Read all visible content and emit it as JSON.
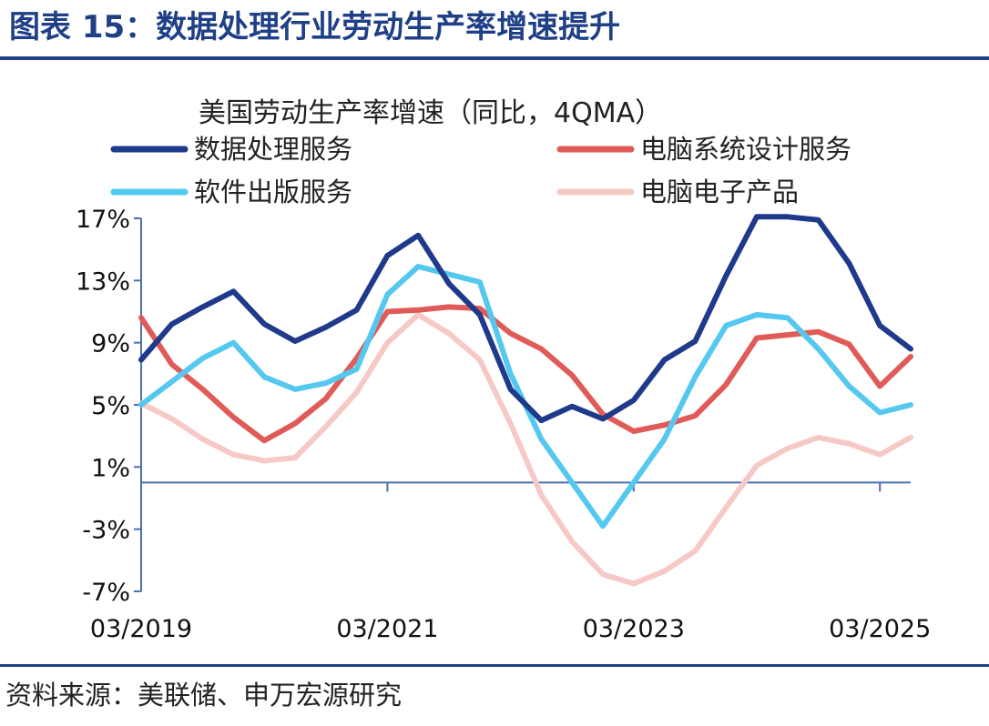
{
  "figure_title": "图表 15：数据处理行业劳动生产率增速提升",
  "source": "资料来源：美联储、申万宏源研究",
  "colors": {
    "accent": "#1f3f86",
    "axis": "#4a6fb5"
  },
  "chart_data": {
    "type": "line",
    "title": "美国劳动生产率增速（同比，4QMA）",
    "xlabel": "",
    "ylabel": "",
    "x_tick_labels": [
      "03/2019",
      "03/2021",
      "03/2023",
      "03/2025"
    ],
    "y_tick_labels": [
      "17%",
      "13%",
      "9%",
      "5%",
      "1%",
      "-3%",
      "-7%"
    ],
    "ylim": [
      -7,
      17
    ],
    "y_ticks": [
      17,
      13,
      9,
      5,
      1,
      -3,
      -7
    ],
    "x": [
      "2019Q1",
      "2019Q2",
      "2019Q3",
      "2019Q4",
      "2020Q1",
      "2020Q2",
      "2020Q3",
      "2020Q4",
      "2021Q1",
      "2021Q2",
      "2021Q3",
      "2021Q4",
      "2022Q1",
      "2022Q2",
      "2022Q3",
      "2022Q4",
      "2023Q1",
      "2023Q2",
      "2023Q3",
      "2023Q4",
      "2024Q1",
      "2024Q2",
      "2024Q3",
      "2024Q4",
      "2025Q1",
      "2025Q2"
    ],
    "grid": false,
    "legend_position": "top",
    "series": [
      {
        "name": "数据处理服务",
        "color": "#1f3a8a",
        "values": [
          7.9,
          10.2,
          11.3,
          12.3,
          10.2,
          9.1,
          10.0,
          11.1,
          14.6,
          15.9,
          12.8,
          10.8,
          6.0,
          4.0,
          4.9,
          4.1,
          5.3,
          7.9,
          9.1,
          13.3,
          17.1,
          17.1,
          16.9,
          14.1,
          10.1,
          8.6
        ]
      },
      {
        "name": "电脑系统设计服务",
        "color": "#e05b57",
        "values": [
          10.6,
          7.6,
          6.0,
          4.2,
          2.7,
          3.8,
          5.4,
          8.0,
          11.0,
          11.1,
          11.3,
          11.2,
          9.6,
          8.6,
          6.9,
          4.4,
          3.3,
          3.7,
          4.3,
          6.3,
          9.3,
          9.5,
          9.7,
          8.9,
          6.2,
          8.1
        ]
      },
      {
        "name": "软件出版服务",
        "color": "#55c8f0",
        "values": [
          5.0,
          6.5,
          8.0,
          9.0,
          6.8,
          6.0,
          6.4,
          7.3,
          12.1,
          13.9,
          13.4,
          12.9,
          7.0,
          2.8,
          0.0,
          -2.8,
          0.0,
          2.8,
          6.8,
          10.1,
          10.8,
          10.6,
          8.6,
          6.2,
          4.5,
          5.0
        ]
      },
      {
        "name": "电脑电子产品",
        "color": "#f6c9c6",
        "values": [
          5.1,
          4.1,
          2.8,
          1.8,
          1.4,
          1.6,
          3.6,
          5.8,
          9.0,
          10.8,
          9.6,
          7.9,
          3.8,
          -0.8,
          -3.8,
          -5.9,
          -6.5,
          -5.7,
          -4.4,
          -1.6,
          1.1,
          2.2,
          2.9,
          2.5,
          1.8,
          2.9
        ]
      }
    ]
  }
}
